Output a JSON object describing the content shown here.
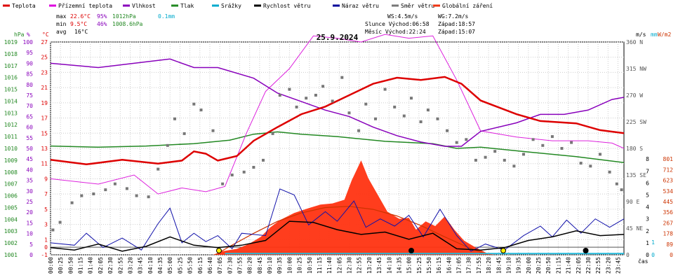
{
  "chart_data": {
    "type": "line",
    "title": "25.9.2024",
    "legend": [
      {
        "label": "Teplota",
        "color": "#dd0000"
      },
      {
        "label": "Přízemní teplota",
        "color": "#dd00dd"
      },
      {
        "label": "Vlhkost",
        "color": "#8800bb"
      },
      {
        "label": "Tlak",
        "color": "#228822"
      },
      {
        "label": "Srážky",
        "color": "#00aacc"
      },
      {
        "label": "Rychlost větru",
        "color": "#000000"
      },
      {
        "label": "Náraz větru",
        "color": "#000099"
      },
      {
        "label": "Směr větru",
        "color": "#777777"
      },
      {
        "label": "Globální záření",
        "color": "#ee3311"
      }
    ],
    "stats": {
      "max": {
        "label": "max",
        "temp": "22.6°C",
        "hum": "95%",
        "press": "1012hPa",
        "rain": "0.1mm"
      },
      "min": {
        "label": "min",
        "temp": "9.5°C",
        "hum": "46%",
        "press": "1008.6hPa"
      },
      "avg": {
        "label": "avg",
        "temp": "16°C"
      }
    },
    "info": {
      "ws": "WS:4.5m/s",
      "wg": "WG:7.2m/s",
      "sun": "Slunce Východ:06:58",
      "sun_set": "Západ:18:57",
      "moon": "Měsíc  Východ:22:24",
      "moon_set": "Západ:15:07"
    },
    "axes": {
      "hpa_unit": "hPa",
      "pct_unit": "%",
      "c_unit": "°C",
      "ms_unit": "m/s",
      "mm_unit": "mm",
      "wm2_unit": "W/m2",
      "time_unit": "čas",
      "hpa_ticks": [
        1001,
        1002,
        1003,
        1004,
        1005,
        1006,
        1007,
        1008,
        1009,
        1010,
        1011,
        1012,
        1013,
        1014,
        1015,
        1016,
        1017,
        1018,
        1019
      ],
      "pct_ticks": [
        0,
        5,
        10,
        15,
        20,
        25,
        30,
        35,
        40,
        45,
        50,
        55,
        60,
        65,
        70,
        75,
        80,
        85,
        90,
        95,
        100
      ],
      "c_ticks": [
        -1,
        1,
        3,
        5,
        7,
        9,
        11,
        13,
        15,
        17,
        19,
        21,
        23,
        25,
        27
      ],
      "c_ticks_extra": [
        "0"
      ],
      "dir_ticks": [
        "0",
        "45 NE",
        "90 E",
        "135 SE",
        "180 S",
        "225 SW",
        "270 W",
        "315 NW",
        "360 N"
      ],
      "ms_ticks": [
        0,
        1,
        2,
        3,
        4,
        5,
        6,
        7,
        8
      ],
      "mm_ticks": [
        0,
        1
      ],
      "rad_ticks": [
        0,
        89,
        178,
        267,
        356,
        445,
        534,
        623,
        712,
        801
      ],
      "time_labels": [
        "00:00",
        "00:25",
        "00:50",
        "01:15",
        "01:40",
        "02:05",
        "02:30",
        "02:55",
        "03:20",
        "03:45",
        "04:10",
        "04:35",
        "05:00",
        "05:25",
        "05:50",
        "06:15",
        "06:40",
        "07:05",
        "07:30",
        "07:55",
        "08:20",
        "08:45",
        "09:10",
        "09:35",
        "10:00",
        "10:25",
        "10:50",
        "11:15",
        "11:40",
        "12:05",
        "12:30",
        "12:55",
        "13:20",
        "13:45",
        "14:10",
        "14:35",
        "15:00",
        "15:25",
        "15:50",
        "16:15",
        "16:40",
        "17:05",
        "17:30",
        "17:55",
        "18:20",
        "18:45",
        "19:10",
        "19:35",
        "20:00",
        "20:25",
        "20:50",
        "21:15",
        "21:40",
        "22:05",
        "22:30",
        "22:55",
        "23:20",
        "23:45"
      ]
    },
    "series": {
      "temperature_c": [
        [
          0,
          11.5
        ],
        [
          1.5,
          10.9
        ],
        [
          3,
          11.5
        ],
        [
          4.5,
          11.0
        ],
        [
          5.5,
          11.4
        ],
        [
          6,
          12.6
        ],
        [
          6.5,
          12.3
        ],
        [
          7,
          11.4
        ],
        [
          7.8,
          12.0
        ],
        [
          8.5,
          14.0
        ],
        [
          9.5,
          15.8
        ],
        [
          10.5,
          17.5
        ],
        [
          11.5,
          18.5
        ],
        [
          12.5,
          20.0
        ],
        [
          13.5,
          21.5
        ],
        [
          14.5,
          22.3
        ],
        [
          15.5,
          22.0
        ],
        [
          16.5,
          22.4
        ],
        [
          17.2,
          21.5
        ],
        [
          18,
          19.3
        ],
        [
          19.5,
          17.5
        ],
        [
          20.5,
          16.6
        ],
        [
          22,
          16.3
        ],
        [
          23,
          15.4
        ],
        [
          24,
          15.0
        ]
      ],
      "ground_temp_c": [
        [
          0,
          9.0
        ],
        [
          2,
          8.3
        ],
        [
          3.5,
          9.5
        ],
        [
          4.5,
          7.0
        ],
        [
          5.5,
          7.8
        ],
        [
          6.5,
          7.3
        ],
        [
          7.3,
          8.0
        ],
        [
          8.2,
          15.0
        ],
        [
          9,
          20.5
        ],
        [
          10,
          23.5
        ],
        [
          11,
          27.8
        ],
        [
          12,
          27.5
        ],
        [
          13,
          27.0
        ],
        [
          14,
          28.0
        ],
        [
          15,
          27.5
        ],
        [
          16,
          27.8
        ],
        [
          17,
          22.0
        ],
        [
          18,
          15.3
        ],
        [
          19.5,
          14.5
        ],
        [
          21,
          14.0
        ],
        [
          22.5,
          14.0
        ],
        [
          23.5,
          13.7
        ],
        [
          24,
          13.0
        ]
      ],
      "humidity_pct": [
        [
          0,
          90
        ],
        [
          2,
          88
        ],
        [
          3.5,
          90
        ],
        [
          5,
          92
        ],
        [
          6,
          88
        ],
        [
          7,
          88
        ],
        [
          8.5,
          83
        ],
        [
          9.5,
          76
        ],
        [
          10.5,
          72
        ],
        [
          11.5,
          68
        ],
        [
          12.5,
          65
        ],
        [
          13.5,
          60
        ],
        [
          14.5,
          56
        ],
        [
          15.5,
          53
        ],
        [
          16.5,
          51
        ],
        [
          17.2,
          51
        ],
        [
          18,
          58
        ],
        [
          19.5,
          62
        ],
        [
          20.5,
          66
        ],
        [
          21.5,
          66
        ],
        [
          22.5,
          68
        ],
        [
          23.5,
          73
        ],
        [
          24,
          74
        ]
      ],
      "pressure_hpa": [
        [
          0,
          1010.2
        ],
        [
          2,
          1010.1
        ],
        [
          4,
          1010.2
        ],
        [
          6,
          1010.4
        ],
        [
          7.5,
          1010.7
        ],
        [
          8.5,
          1011.2
        ],
        [
          9.5,
          1011.4
        ],
        [
          10.5,
          1011.2
        ],
        [
          12,
          1011.0
        ],
        [
          14,
          1010.6
        ],
        [
          16,
          1010.4
        ],
        [
          17,
          1010.0
        ],
        [
          18,
          1010.1
        ],
        [
          20,
          1009.7
        ],
        [
          22,
          1009.3
        ],
        [
          24,
          1008.8
        ]
      ],
      "rain_rate_mm": [
        [
          0,
          0
        ],
        [
          7.2,
          0
        ],
        [
          7.3,
          0.1
        ],
        [
          24,
          0.1
        ]
      ],
      "wind_speed_ms": [
        [
          0,
          0.6
        ],
        [
          1,
          0.4
        ],
        [
          2,
          0.9
        ],
        [
          3,
          0.3
        ],
        [
          4,
          0.7
        ],
        [
          5,
          1.5
        ],
        [
          6,
          0.8
        ],
        [
          7,
          0.6
        ],
        [
          8,
          0.8
        ],
        [
          9,
          1.2
        ],
        [
          10,
          2.8
        ],
        [
          11,
          2.7
        ],
        [
          12,
          2.1
        ],
        [
          13,
          1.7
        ],
        [
          14,
          1.9
        ],
        [
          15,
          1.3
        ],
        [
          16,
          1.8
        ],
        [
          17,
          0.5
        ],
        [
          18,
          0.4
        ],
        [
          19,
          0.6
        ],
        [
          20,
          1.2
        ],
        [
          21,
          1.5
        ],
        [
          22,
          2.0
        ],
        [
          23,
          1.6
        ],
        [
          24,
          1.7
        ]
      ],
      "wind_gust_ms": [
        [
          0,
          1.0
        ],
        [
          1,
          0.8
        ],
        [
          1.5,
          1.8
        ],
        [
          2.2,
          0.6
        ],
        [
          3,
          1.4
        ],
        [
          3.8,
          0.4
        ],
        [
          4.5,
          2.6
        ],
        [
          5,
          3.9
        ],
        [
          5.5,
          1.0
        ],
        [
          6,
          1.8
        ],
        [
          6.5,
          1.1
        ],
        [
          7,
          1.6
        ],
        [
          7.6,
          0.5
        ],
        [
          8,
          1.8
        ],
        [
          9,
          1.6
        ],
        [
          9.6,
          5.5
        ],
        [
          10.2,
          5.0
        ],
        [
          10.8,
          2.5
        ],
        [
          11.5,
          3.6
        ],
        [
          12,
          2.8
        ],
        [
          12.7,
          4.5
        ],
        [
          13.2,
          2.3
        ],
        [
          13.8,
          3.0
        ],
        [
          14.4,
          2.4
        ],
        [
          15,
          3.3
        ],
        [
          15.6,
          1.5
        ],
        [
          16.3,
          3.8
        ],
        [
          17,
          1.6
        ],
        [
          17.6,
          0.3
        ],
        [
          18.2,
          0.9
        ],
        [
          19,
          0.4
        ],
        [
          19.8,
          1.6
        ],
        [
          20.5,
          2.4
        ],
        [
          21,
          1.5
        ],
        [
          21.6,
          2.9
        ],
        [
          22.2,
          1.8
        ],
        [
          22.8,
          3.0
        ],
        [
          23.4,
          2.3
        ],
        [
          24,
          3.0
        ]
      ],
      "wind_dir_deg": [
        [
          0.1,
          42
        ],
        [
          0.4,
          55
        ],
        [
          0.9,
          88
        ],
        [
          1.3,
          100
        ],
        [
          1.8,
          103
        ],
        [
          2.3,
          110
        ],
        [
          2.7,
          120
        ],
        [
          3.2,
          112
        ],
        [
          3.6,
          100
        ],
        [
          4.1,
          98
        ],
        [
          4.5,
          145
        ],
        [
          4.9,
          185
        ],
        [
          5.2,
          230
        ],
        [
          5.6,
          205
        ],
        [
          6.0,
          255
        ],
        [
          6.3,
          245
        ],
        [
          6.8,
          210
        ],
        [
          7.2,
          120
        ],
        [
          7.6,
          135
        ],
        [
          8.1,
          140
        ],
        [
          8.5,
          148
        ],
        [
          8.9,
          160
        ],
        [
          9.3,
          205
        ],
        [
          9.6,
          270
        ],
        [
          10.0,
          280
        ],
        [
          10.3,
          250
        ],
        [
          10.7,
          265
        ],
        [
          11.1,
          270
        ],
        [
          11.4,
          285
        ],
        [
          11.8,
          260
        ],
        [
          12.2,
          300
        ],
        [
          12.5,
          240
        ],
        [
          12.9,
          210
        ],
        [
          13.2,
          255
        ],
        [
          13.6,
          230
        ],
        [
          14.0,
          280
        ],
        [
          14.4,
          250
        ],
        [
          14.8,
          235
        ],
        [
          15.1,
          265
        ],
        [
          15.5,
          225
        ],
        [
          15.8,
          245
        ],
        [
          16.2,
          230
        ],
        [
          16.6,
          210
        ],
        [
          17.0,
          190
        ],
        [
          17.4,
          195
        ],
        [
          17.8,
          160
        ],
        [
          18.2,
          165
        ],
        [
          18.6,
          175
        ],
        [
          19.0,
          160
        ],
        [
          19.4,
          150
        ],
        [
          19.8,
          170
        ],
        [
          20.2,
          195
        ],
        [
          20.6,
          185
        ],
        [
          21.0,
          200
        ],
        [
          21.4,
          180
        ],
        [
          21.8,
          190
        ],
        [
          22.2,
          155
        ],
        [
          22.6,
          150
        ],
        [
          23.0,
          170
        ],
        [
          23.4,
          140
        ],
        [
          23.7,
          120
        ],
        [
          23.9,
          110
        ]
      ],
      "radiation_wm2": [
        [
          0,
          0
        ],
        [
          6.8,
          0
        ],
        [
          7.2,
          30
        ],
        [
          7.8,
          50
        ],
        [
          8.3,
          90
        ],
        [
          8.8,
          150
        ],
        [
          9.2,
          230
        ],
        [
          9.6,
          290
        ],
        [
          10.2,
          350
        ],
        [
          10.8,
          390
        ],
        [
          11.3,
          420
        ],
        [
          11.8,
          430
        ],
        [
          12.3,
          460
        ],
        [
          12.6,
          620
        ],
        [
          13.0,
          790
        ],
        [
          13.3,
          640
        ],
        [
          13.7,
          500
        ],
        [
          14.1,
          360
        ],
        [
          14.6,
          300
        ],
        [
          15.0,
          310
        ],
        [
          15.3,
          210
        ],
        [
          15.7,
          280
        ],
        [
          16.1,
          240
        ],
        [
          16.5,
          320
        ],
        [
          16.9,
          210
        ],
        [
          17.3,
          120
        ],
        [
          17.8,
          60
        ],
        [
          18.3,
          10
        ],
        [
          18.6,
          0
        ],
        [
          24,
          0
        ]
      ],
      "radiation_clear_sky_wm2": [
        [
          6.9,
          0
        ],
        [
          7.5,
          70
        ],
        [
          8.5,
          180
        ],
        [
          9.5,
          280
        ],
        [
          10.5,
          350
        ],
        [
          11.5,
          395
        ],
        [
          12.5,
          405
        ],
        [
          13.5,
          380
        ],
        [
          14.5,
          325
        ],
        [
          15.5,
          245
        ],
        [
          16.5,
          150
        ],
        [
          17.5,
          60
        ],
        [
          18.3,
          0
        ]
      ]
    },
    "markers": {
      "sunrise_h": 7.05,
      "sunset_h": 18.95,
      "moon_set_h": 15.1,
      "moon_rise_h": 22.4
    }
  }
}
